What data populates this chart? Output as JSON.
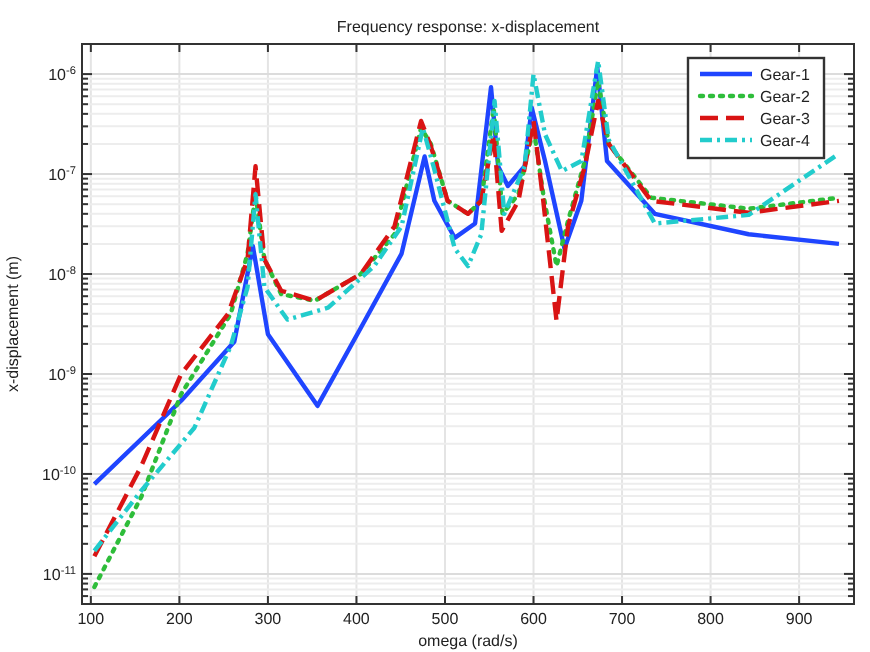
{
  "chart_data": {
    "type": "line",
    "title": "Frequency response: x-displacement",
    "xlabel": "omega (rad/s)",
    "ylabel": "x-displacement (m)",
    "log": "y",
    "grid": true,
    "legend": "top right",
    "xlim": [
      90,
      962
    ],
    "xticks": [
      100,
      200,
      300,
      400,
      500,
      600,
      700,
      800,
      900
    ],
    "ylim": [
      5e-12,
      2e-06
    ],
    "yticks": [
      {
        "value": 6e-12,
        "label": null
      },
      {
        "value": 7e-12,
        "label": null
      },
      {
        "value": 8e-12,
        "label": null
      },
      {
        "value": 9e-12,
        "label": null
      },
      {
        "value": 1e-11,
        "label": "10$^{-11}$"
      },
      {
        "value": 2e-11,
        "label": null
      },
      {
        "value": 3e-11,
        "label": null
      },
      {
        "value": 4e-11,
        "label": null
      },
      {
        "value": 5e-11,
        "label": null
      },
      {
        "value": 6e-11,
        "label": null
      },
      {
        "value": 7e-11,
        "label": null
      },
      {
        "value": 8e-11,
        "label": null
      },
      {
        "value": 9e-11,
        "label": null
      },
      {
        "value": 1e-10,
        "label": "10$^{-10}$"
      },
      {
        "value": 2e-10,
        "label": null
      },
      {
        "value": 3e-10,
        "label": null
      },
      {
        "value": 4e-10,
        "label": null
      },
      {
        "value": 5e-10,
        "label": null
      },
      {
        "value": 6e-10,
        "label": null
      },
      {
        "value": 7e-10,
        "label": null
      },
      {
        "value": 8e-10,
        "label": null
      },
      {
        "value": 9e-10,
        "label": null
      },
      {
        "value": 1e-09,
        "label": "10$^{-9}$"
      },
      {
        "value": 2e-09,
        "label": null
      },
      {
        "value": 3e-09,
        "label": null
      },
      {
        "value": 4e-09,
        "label": null
      },
      {
        "value": 5e-09,
        "label": null
      },
      {
        "value": 6e-09,
        "label": null
      },
      {
        "value": 7e-09,
        "label": null
      },
      {
        "value": 8e-09,
        "label": null
      },
      {
        "value": 9e-09,
        "label": null
      },
      {
        "value": 1e-08,
        "label": "10$^{-8}$"
      },
      {
        "value": 2e-08,
        "label": null
      },
      {
        "value": 3e-08,
        "label": null
      },
      {
        "value": 4e-08,
        "label": null
      },
      {
        "value": 5e-08,
        "label": null
      },
      {
        "value": 6e-08,
        "label": null
      },
      {
        "value": 7e-08,
        "label": null
      },
      {
        "value": 8e-08,
        "label": null
      },
      {
        "value": 9e-08,
        "label": null
      },
      {
        "value": 1e-07,
        "label": "10$^{-7}$"
      },
      {
        "value": 2e-07,
        "label": null
      },
      {
        "value": 3e-07,
        "label": null
      },
      {
        "value": 4e-07,
        "label": null
      },
      {
        "value": 5e-07,
        "label": null
      },
      {
        "value": 6e-07,
        "label": null
      },
      {
        "value": 7e-07,
        "label": null
      },
      {
        "value": 8e-07,
        "label": null
      },
      {
        "value": 9e-07,
        "label": null
      },
      {
        "value": 1e-06,
        "label": "10$^{-6}$"
      },
      {
        "value": 2e-06,
        "label": null
      }
    ],
    "series": [
      {
        "name": "Gear-1",
        "color": "#1f45ff",
        "line_style": "solid",
        "x": [
          104,
          202,
          262,
          283,
          300,
          356,
          405,
          451,
          477,
          488,
          511,
          534,
          552,
          560,
          571,
          590,
          598,
          613,
          635,
          654,
          672,
          683,
          737,
          843,
          945
        ],
        "values": [
          7.9e-11,
          5.4e-10,
          2.1e-09,
          1.9e-08,
          2.5e-09,
          4.8e-10,
          2.9e-09,
          1.6e-08,
          1.5e-07,
          5.4e-08,
          2.3e-08,
          3.2e-08,
          7.4e-07,
          1.2e-07,
          7.6e-08,
          1.2e-07,
          4.6e-07,
          1.35e-07,
          1.8e-08,
          5.4e-08,
          1.17e-06,
          1.35e-07,
          4e-08,
          2.5e-08,
          2e-08
        ]
      },
      {
        "name": "Gear-2",
        "color": "#2ebd3a",
        "line_style": "dotted",
        "x": [
          104,
          157,
          202,
          258,
          277,
          286,
          296,
          315,
          353,
          405,
          443,
          473,
          484,
          503,
          526,
          541,
          555,
          565,
          583,
          600,
          611,
          626,
          639,
          658,
          673,
          685,
          733,
          843,
          945
        ],
        "values": [
          7.4e-12,
          5.9e-11,
          6.3e-10,
          4e-09,
          1.6e-08,
          6.3e-08,
          1.4e-08,
          6.3e-09,
          5.4e-09,
          1e-08,
          2.5e-08,
          2.9e-07,
          2e-07,
          5.4e-08,
          4e-08,
          5.4e-08,
          4.6e-07,
          4e-08,
          6.3e-08,
          2.9e-07,
          6.3e-08,
          1.2e-08,
          3.4e-08,
          1.35e-07,
          8.6e-07,
          2e-07,
          5.8e-08,
          4.5e-08,
          5.8e-08
        ]
      },
      {
        "name": "Gear-3",
        "color": "#d91414",
        "line_style": "dashed",
        "x": [
          104,
          157,
          202,
          255,
          277,
          286,
          296,
          315,
          353,
          405,
          443,
          473,
          484,
          503,
          526,
          541,
          555,
          564,
          583,
          600,
          611,
          626,
          639,
          658,
          673,
          685,
          733,
          843,
          945
        ],
        "values": [
          1.5e-11,
          1.2e-10,
          1e-09,
          4e-09,
          1.4e-08,
          1.2e-07,
          1.4e-08,
          6.8e-09,
          5.4e-09,
          1e-08,
          3e-08,
          3.4e-07,
          1.9e-07,
          5.4e-08,
          4e-08,
          5.4e-08,
          2.5e-07,
          2.7e-08,
          5.4e-08,
          3.4e-07,
          5.4e-08,
          3.4e-09,
          3e-08,
          1.2e-07,
          5.4e-07,
          2e-07,
          5.4e-08,
          4.1e-08,
          5.4e-08
        ]
      },
      {
        "name": "Gear-4",
        "color": "#22cccc",
        "line_style": "dashdot",
        "x": [
          104,
          157,
          217,
          258,
          277,
          286,
          296,
          322,
          368,
          420,
          451,
          475,
          487,
          511,
          526,
          541,
          556,
          567,
          590,
          600,
          613,
          632,
          654,
          673,
          685,
          737,
          843,
          945
        ],
        "values": [
          1.7e-11,
          6.8e-11,
          2.9e-10,
          1.9e-09,
          7.4e-09,
          6.3e-08,
          7.4e-09,
          3.5e-09,
          4.6e-09,
          1.2e-08,
          3e-08,
          2.9e-07,
          1.2e-07,
          1.8e-08,
          1.2e-08,
          2.5e-08,
          5.4e-07,
          4e-08,
          1.2e-07,
          1e-06,
          2.5e-07,
          1.07e-07,
          1.35e-07,
          1.36e-06,
          2.2e-07,
          3.2e-08,
          3.9e-08,
          1.6e-07
        ]
      }
    ]
  }
}
